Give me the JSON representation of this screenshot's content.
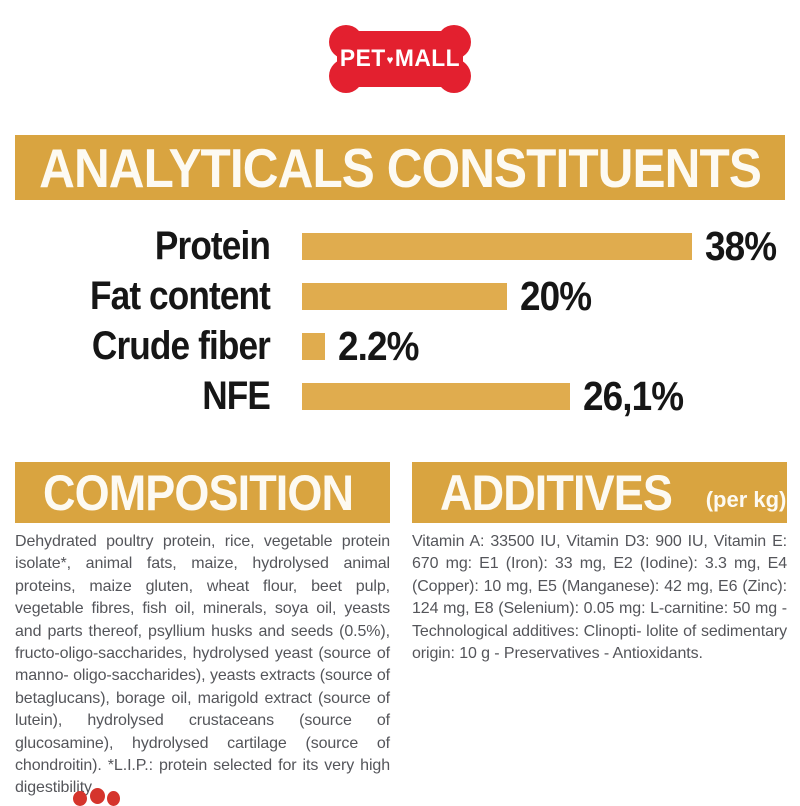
{
  "logo": {
    "text_left": "PET",
    "separator_icon": "heart-icon",
    "separator_glyph": "♥",
    "text_right": "MALL",
    "bone_color": "#E3202F",
    "text_color": "#FFFFFF"
  },
  "chart_data": {
    "type": "bar",
    "orientation": "horizontal",
    "title": "ANALYTICALS CONSTITUENTS",
    "categories": [
      "Protein",
      "Fat content",
      "Crude fiber",
      "NFE"
    ],
    "values": [
      38,
      20,
      2.2,
      26.1
    ],
    "value_labels": [
      "38%",
      "20%",
      "2.2%",
      "26,1%"
    ],
    "xlabel": "",
    "ylabel": "",
    "xlim": [
      0,
      38
    ],
    "grid": false,
    "legend": false,
    "bar_color": "#E0AC4E",
    "header_bg_color": "#D9A440",
    "label_color": "#161616"
  },
  "composition": {
    "title": "COMPOSITION",
    "body": "Dehydrated poultry protein, rice, vegetable protein isolate*, animal fats, maize, hydrolysed animal proteins, maize gluten, wheat flour, beet pulp, vegetable fibres, fish oil, minerals, soya oil, yeasts and parts thereof, psyllium husks and seeds (0.5%), fructo-oligo-saccharides, hydrolysed yeast (source of manno- oligo-saccharides), yeasts extracts (source of betaglucans), borage oil, marigold extract (source of lutein), hydrolysed crustaceans (source of glucosamine), hydrolysed cartilage (source of chondroitin). *L.I.P.: protein selected for its very high digestibility."
  },
  "additives": {
    "title": "ADDITIVES",
    "subtitle": "(per kg)",
    "body": "Vitamin A: 33500 IU, Vitamin D3: 900 IU, Vitamin E: 670 mg: E1 (Iron): 33 mg, E2 (Iodine): 3.3 mg, E4 (Copper): 10 mg, E5 (Manganese): 42 mg, E6 (Zinc): 124 mg, E8 (Selenium): 0.05 mg: L-carnitine: 50 mg - Technological additives: Clinopti- lolite of sedimentary origin: 10 g - Preservatives - Antioxidants."
  },
  "decor": {
    "paw_icon": "paw-toes-icon",
    "paw_color": "#D5342C"
  },
  "colors": {
    "brand_red": "#E3202F",
    "gold_header": "#D9A440",
    "gold_bar": "#E0AC4E",
    "label_black": "#161616",
    "body_gray": "#54555A",
    "header_text": "#FDFAF2"
  }
}
